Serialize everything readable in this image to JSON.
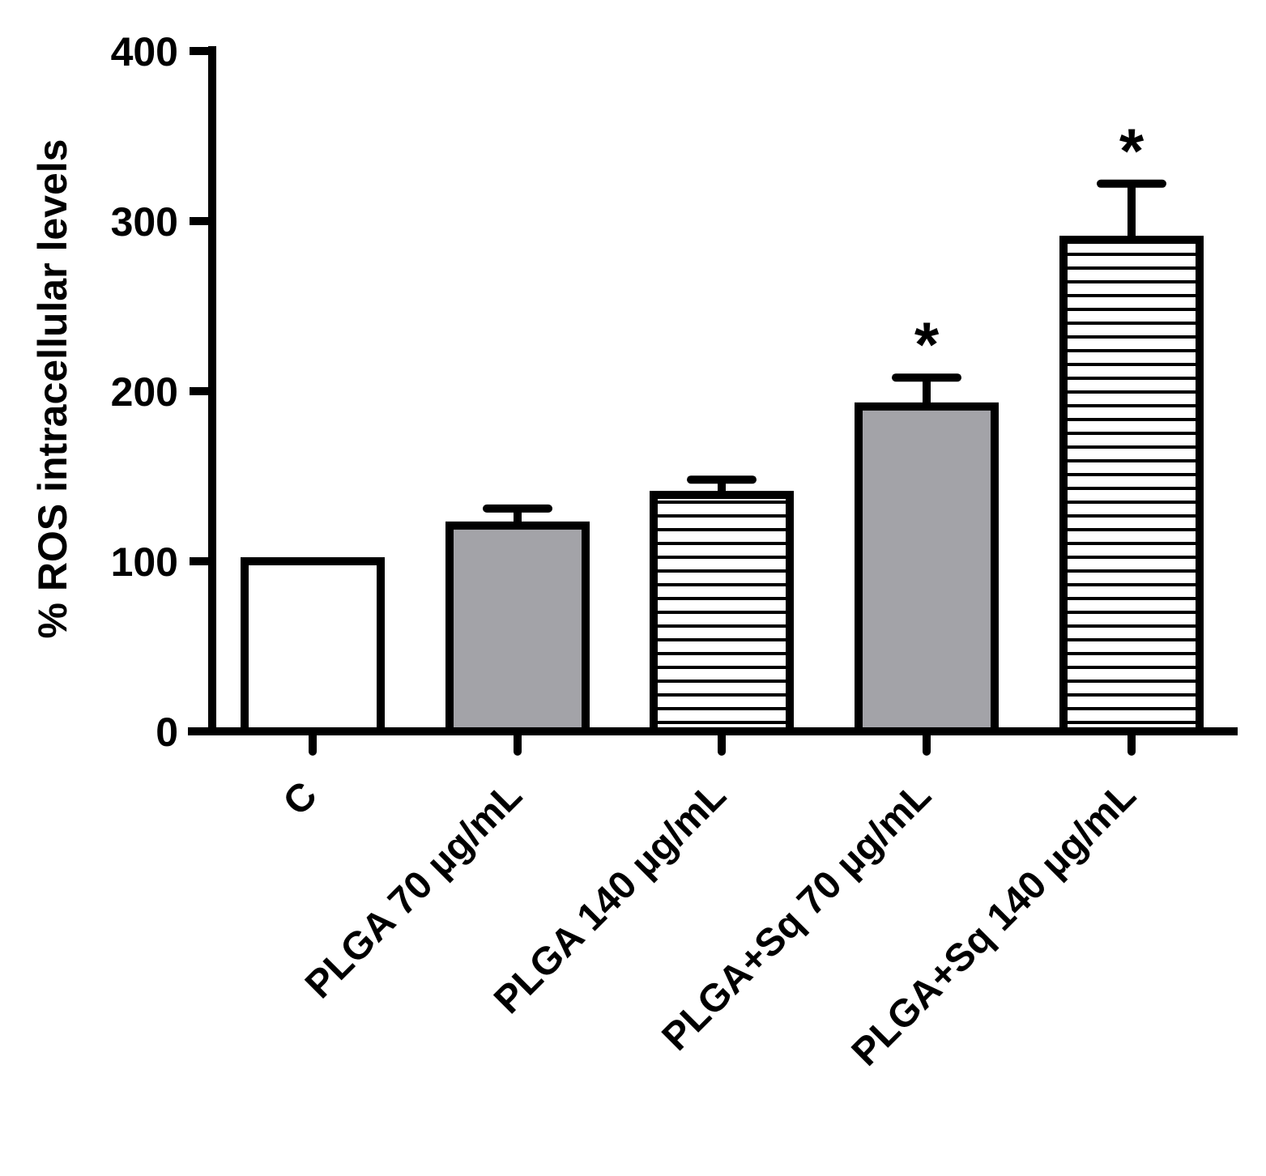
{
  "chart_data": {
    "type": "bar",
    "ylabel": "% ROS intracellular levels",
    "xlabel": "",
    "ylim": [
      0,
      400
    ],
    "yticks": [
      0,
      100,
      200,
      300,
      400
    ],
    "grid": false,
    "categories": [
      "C",
      "PLGA 70 µg/mL",
      "PLGA 140 µg/mL",
      "PLGA+Sq 70 µg/mL",
      "PLGA+Sq 140 µg/mL"
    ],
    "values": [
      100,
      121,
      139,
      191,
      289
    ],
    "error_upper": [
      0,
      10,
      9,
      17,
      33
    ],
    "annotations": [
      "",
      "",
      "",
      "*",
      "*"
    ],
    "fills": [
      "white",
      "gray",
      "stripes",
      "gray",
      "stripes"
    ],
    "colors": {
      "gray": "#a3a3a8",
      "outline": "#000000",
      "white": "#ffffff"
    }
  }
}
